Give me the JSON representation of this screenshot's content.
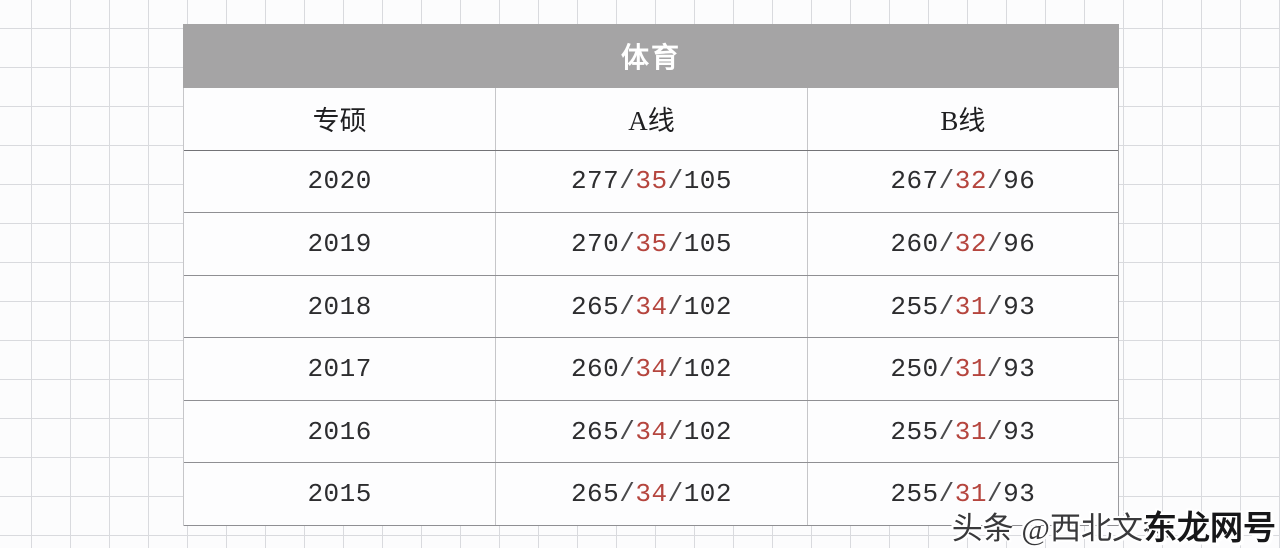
{
  "table": {
    "title": "体育",
    "columns": [
      "专硕",
      "A线",
      "B线"
    ],
    "sep": "/",
    "rows": [
      {
        "year": "2020",
        "a": {
          "p1": "277",
          "p2": "35",
          "p3": "105"
        },
        "b": {
          "p1": "267",
          "p2": "32",
          "p3": "96"
        }
      },
      {
        "year": "2019",
        "a": {
          "p1": "270",
          "p2": "35",
          "p3": "105"
        },
        "b": {
          "p1": "260",
          "p2": "32",
          "p3": "96"
        }
      },
      {
        "year": "2018",
        "a": {
          "p1": "265",
          "p2": "34",
          "p3": "102"
        },
        "b": {
          "p1": "255",
          "p2": "31",
          "p3": "93"
        }
      },
      {
        "year": "2017",
        "a": {
          "p1": "260",
          "p2": "34",
          "p3": "102"
        },
        "b": {
          "p1": "250",
          "p2": "31",
          "p3": "93"
        }
      },
      {
        "year": "2016",
        "a": {
          "p1": "265",
          "p2": "34",
          "p3": "102"
        },
        "b": {
          "p1": "255",
          "p2": "31",
          "p3": "93"
        }
      },
      {
        "year": "2015",
        "a": {
          "p1": "265",
          "p2": "34",
          "p3": "102"
        },
        "b": {
          "p1": "255",
          "p2": "31",
          "p3": "93"
        }
      }
    ]
  },
  "watermark": {
    "prefix": "头条 @西北文都",
    "suffix": "东龙网号"
  },
  "colors": {
    "header_bg": "#a5a4a5",
    "highlight_red": "#b5453e",
    "row_border": "#8f8f93",
    "grid_line": "#d9dade"
  },
  "chart_data": {
    "type": "table",
    "title": "体育",
    "columns": [
      "专硕",
      "A线",
      "B线"
    ],
    "rows": [
      [
        "2020",
        "277/35/105",
        "267/32/96"
      ],
      [
        "2019",
        "270/35/105",
        "260/32/96"
      ],
      [
        "2018",
        "265/34/102",
        "255/31/93"
      ],
      [
        "2017",
        "260/34/102",
        "250/31/93"
      ],
      [
        "2016",
        "265/34/102",
        "255/31/93"
      ],
      [
        "2015",
        "265/34/102",
        "255/31/93"
      ]
    ],
    "notes": "Middle number of each score triple is highlighted in red"
  }
}
